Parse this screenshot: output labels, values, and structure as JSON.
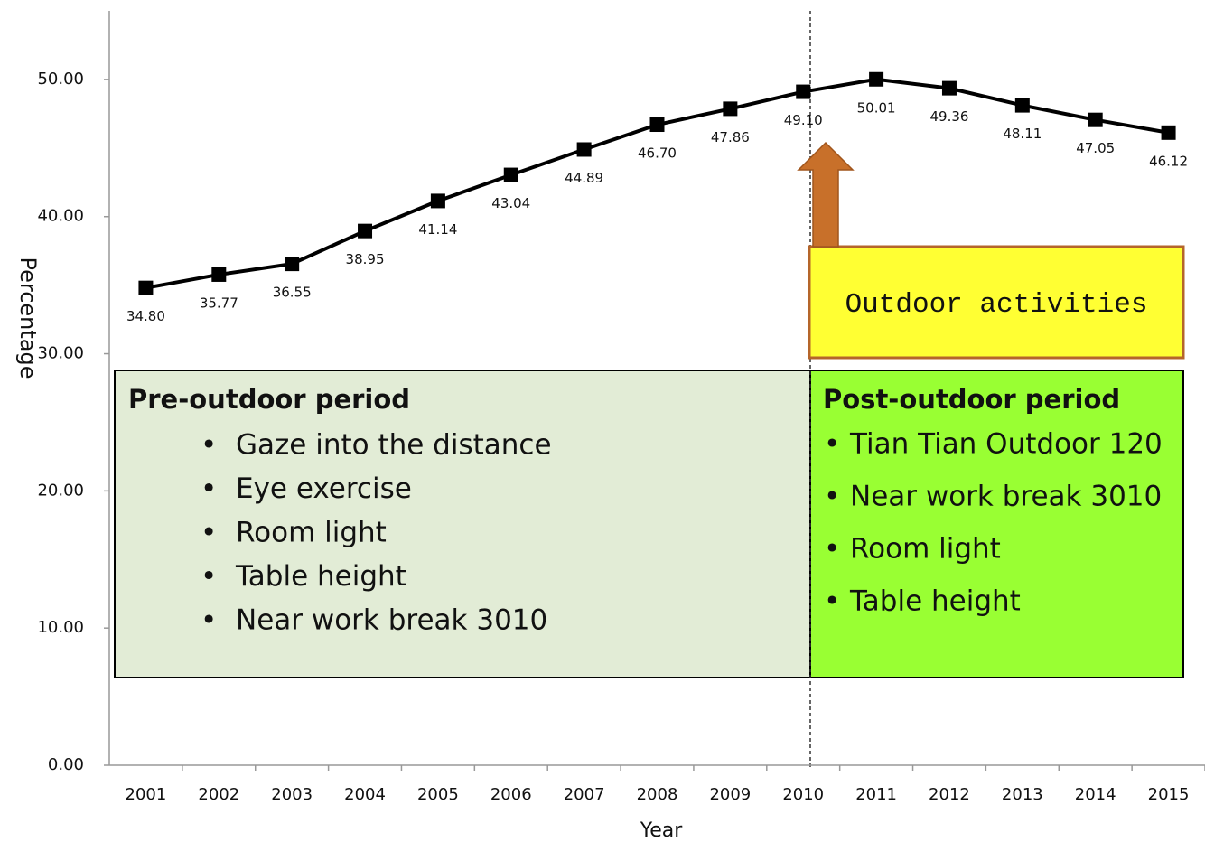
{
  "chart_data": {
    "type": "line",
    "x_label": "Year",
    "y_label": "Percentage",
    "categories": [
      "2001",
      "2002",
      "2003",
      "2004",
      "2005",
      "2006",
      "2007",
      "2008",
      "2009",
      "2010",
      "2011",
      "2012",
      "2013",
      "2014",
      "2015"
    ],
    "values": [
      34.8,
      35.77,
      36.55,
      38.95,
      41.14,
      43.04,
      44.89,
      46.7,
      47.86,
      49.1,
      50.01,
      49.36,
      48.11,
      47.05,
      46.12
    ],
    "value_labels": [
      "34.80",
      "35.77",
      "36.55",
      "38.95",
      "41.14",
      "43.04",
      "44.89",
      "46.70",
      "47.86",
      "49.10",
      "50.01",
      "49.36",
      "48.11",
      "47.05",
      "46.12"
    ],
    "color": "#000000",
    "ylim": [
      0,
      55
    ],
    "yticks": [
      {
        "value": 0,
        "label": "0.00"
      },
      {
        "value": 10,
        "label": "10.00"
      },
      {
        "value": 20,
        "label": "20.00"
      },
      {
        "value": 30,
        "label": "30.00"
      },
      {
        "value": 40,
        "label": "40.00"
      },
      {
        "value": 50,
        "label": "50.00"
      }
    ],
    "grid": false,
    "callout": "Outdoor activities",
    "pre_period": {
      "title": "Pre-outdoor period",
      "items": [
        "Gaze into the distance",
        "Eye exercise",
        "Room light",
        "Table height",
        "Near work break 3010"
      ]
    },
    "post_period": {
      "title": "Post-outdoor period",
      "items": [
        "Tian Tian Outdoor 120",
        "Near work break 3010",
        "Room light",
        "Table height"
      ]
    }
  }
}
